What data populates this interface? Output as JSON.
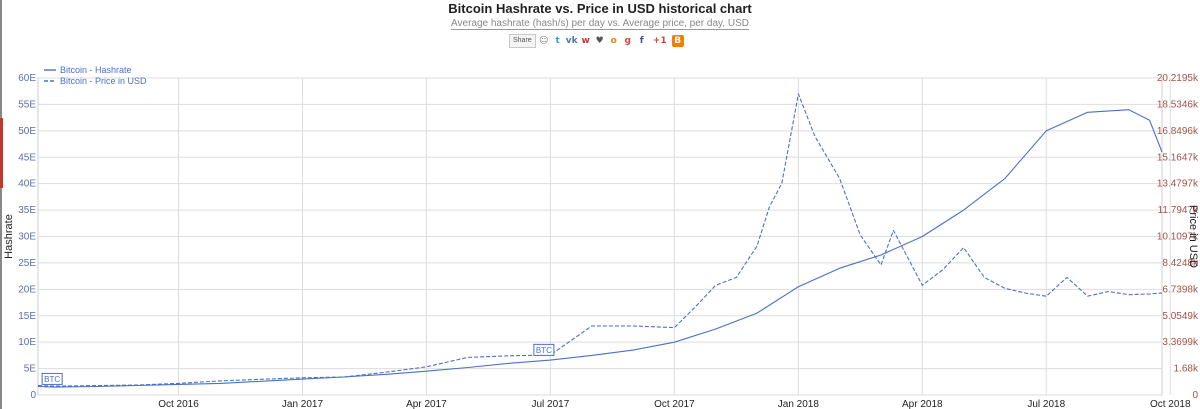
{
  "chart_data": {
    "type": "line",
    "title": "Bitcoin Hashrate vs. Price in USD historical chart",
    "subtitle": "Average hashrate (hash/s) per day vs. Average price, per day, USD",
    "ylabel": "Hashrate",
    "y2label": "Price in USD",
    "left_ticks": [
      "0",
      "5E",
      "10E",
      "15E",
      "20E",
      "25E",
      "30E",
      "35E",
      "40E",
      "45E",
      "50E",
      "55E",
      "60E"
    ],
    "right_ticks": [
      "0",
      "1.68k",
      "3.3699k",
      "5.0549k",
      "6.7398k",
      "8.4248k",
      "10.1097k",
      "11.7947k",
      "13.4797k",
      "15.1647k",
      "16.8496k",
      "18.5346k",
      "20.2195k"
    ],
    "x_ticks": [
      "Oct 2016",
      "Jan 2017",
      "Apr 2017",
      "Jul 2017",
      "Oct 2017",
      "Jan 2018",
      "Apr 2018",
      "Jul 2018",
      "Oct 2018"
    ],
    "x_range": [
      -3.4,
      23.8
    ],
    "ylim": [
      0,
      60
    ],
    "y2lim": [
      0,
      20219.5
    ],
    "legend_position": "top-left",
    "series": [
      {
        "name": "Bitcoin - Hashrate",
        "style": "solid",
        "axis": "left",
        "unit": "E hash/s",
        "color": "#4a70c8",
        "x": [
          -3.4,
          -3.0,
          -2.0,
          -1.0,
          0.0,
          1.0,
          2.0,
          3.0,
          4.0,
          5.0,
          6.0,
          7.0,
          8.0,
          9.0,
          10.0,
          11.0,
          12.0,
          13.0,
          14.0,
          15.0,
          16.0,
          17.0,
          18.0,
          19.0,
          20.0,
          21.0,
          22.0,
          23.0,
          23.5,
          23.8
        ],
        "values": [
          1.6,
          1.5,
          1.6,
          1.8,
          2.0,
          2.2,
          2.6,
          3.0,
          3.4,
          3.9,
          4.5,
          5.2,
          6.0,
          6.6,
          7.5,
          8.5,
          10.0,
          12.5,
          15.5,
          20.5,
          24.0,
          26.5,
          30.0,
          35.0,
          41.0,
          50.0,
          53.5,
          54.0,
          52.0,
          46.0
        ]
      },
      {
        "name": "Bitcoin - Price in USD",
        "style": "dashed",
        "axis": "right",
        "unit": "USD",
        "color": "#4a70c8",
        "x": [
          -3.4,
          -3.0,
          -2.0,
          -1.0,
          0.0,
          1.0,
          2.0,
          3.0,
          4.0,
          5.0,
          6.0,
          7.0,
          8.0,
          9.0,
          10.0,
          11.0,
          12.0,
          12.5,
          13.0,
          13.5,
          14.0,
          14.3,
          14.6,
          15.0,
          15.4,
          16.0,
          16.5,
          17.0,
          17.3,
          17.6,
          18.0,
          18.5,
          19.0,
          19.5,
          20.0,
          20.5,
          21.0,
          21.5,
          22.0,
          22.5,
          23.0,
          23.5,
          23.8
        ],
        "values": [
          600,
          570,
          600,
          640,
          740,
          900,
          1000,
          1100,
          1150,
          1450,
          1800,
          2400,
          2500,
          2550,
          4400,
          4400,
          4300,
          5600,
          7000,
          7500,
          9500,
          12000,
          13500,
          19200,
          16500,
          13800,
          10200,
          8300,
          10500,
          9000,
          7000,
          8000,
          9400,
          7500,
          6800,
          6500,
          6300,
          7500,
          6300,
          6600,
          6400,
          6450,
          6500
        ]
      }
    ],
    "annotations": [
      "BTC",
      "BTC"
    ]
  }
}
